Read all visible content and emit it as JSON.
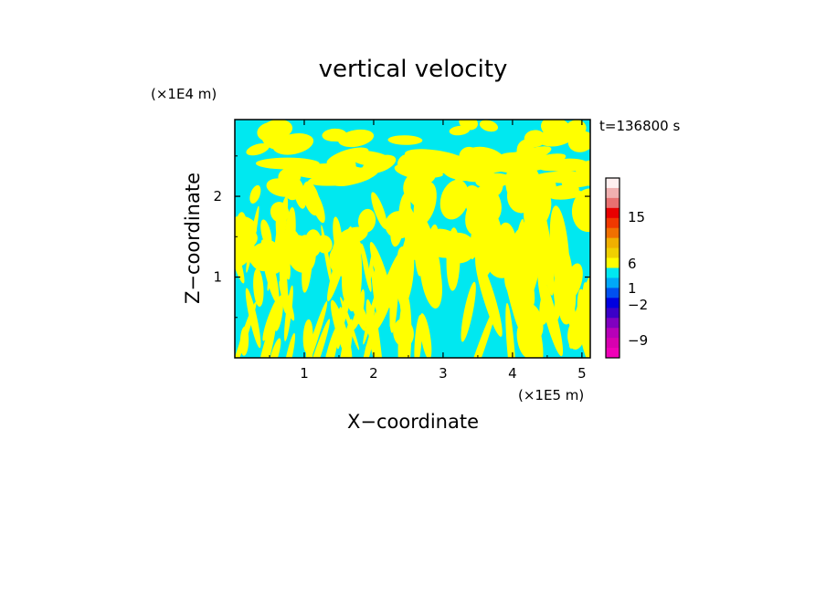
{
  "chart_data": {
    "type": "heatmap",
    "title": "vertical velocity",
    "xlabel": "X−coordinate",
    "ylabel": "Z−coordinate",
    "x_unit": "(×1E5 m)",
    "y_unit": "(×1E4 m)",
    "time_label": "t=136800 s",
    "xlim": [
      0,
      5.12
    ],
    "ylim": [
      0,
      2.95
    ],
    "x_ticks": [
      1,
      2,
      3,
      4,
      5
    ],
    "y_ticks": [
      1,
      2
    ],
    "x_tick_labels": [
      "1",
      "2",
      "3",
      "4",
      "5"
    ],
    "y_tick_labels": [
      "1",
      "2"
    ],
    "field_colors": {
      "negative": "#00e8f0",
      "positive": "#ffff00"
    },
    "colorbar": {
      "bands": [
        {
          "v": -12,
          "color": "#f000b8"
        },
        {
          "v": -9,
          "color": "#d800b0"
        },
        {
          "v": -6,
          "color": "#b800b8"
        },
        {
          "v": -4,
          "color": "#8000c0"
        },
        {
          "v": -3,
          "color": "#3a00c8"
        },
        {
          "v": -2,
          "color": "#0000e0"
        },
        {
          "v": -1.5,
          "color": "#0050f0"
        },
        {
          "v": -1,
          "color": "#00a8f8"
        },
        {
          "v": -0.5,
          "color": "#00e8f0"
        },
        {
          "v": 0.5,
          "color": "#ffff00"
        },
        {
          "v": 1,
          "color": "#f0d000"
        },
        {
          "v": 2,
          "color": "#f0b000"
        },
        {
          "v": 4,
          "color": "#f07000"
        },
        {
          "v": 6,
          "color": "#f03800"
        },
        {
          "v": 9,
          "color": "#e80000"
        },
        {
          "v": 12,
          "color": "#e87070"
        },
        {
          "v": 15,
          "color": "#f0b0b0"
        },
        {
          "v": 18,
          "color": "#fff0f0"
        }
      ],
      "labels": [
        "15",
        "6",
        "1",
        "−2",
        "−9"
      ]
    }
  }
}
